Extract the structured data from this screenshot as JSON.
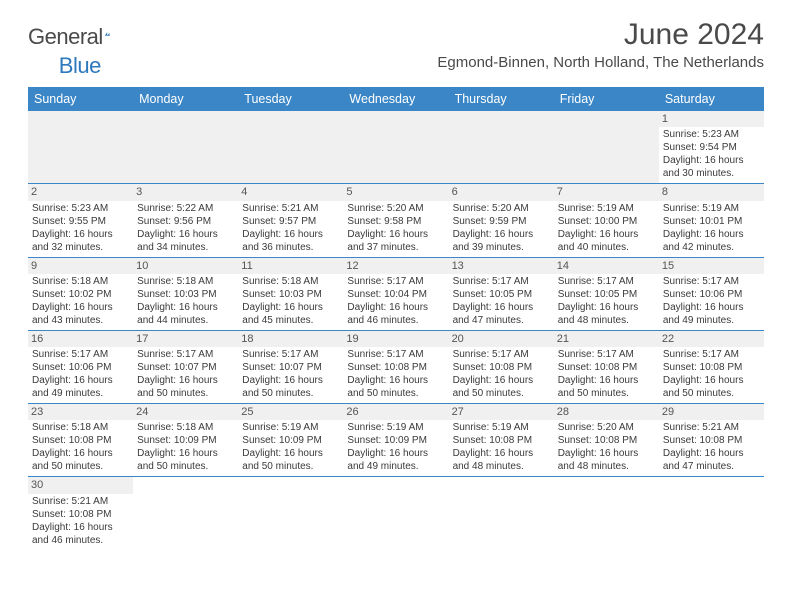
{
  "logo": {
    "text1": "General",
    "text2": "Blue"
  },
  "title": "June 2024",
  "location": "Egmond-Binnen, North Holland, The Netherlands",
  "colors": {
    "header_bg": "#3b86c6",
    "header_text": "#ffffff",
    "daynum_bg": "#f0f0f0",
    "text": "#3a3a3a",
    "divider": "#3b86c6",
    "logo_gray": "#4a4a4a",
    "logo_blue": "#2d79bd"
  },
  "weekdays": [
    "Sunday",
    "Monday",
    "Tuesday",
    "Wednesday",
    "Thursday",
    "Friday",
    "Saturday"
  ],
  "days": {
    "1": {
      "sr": "5:23 AM",
      "ss": "9:54 PM",
      "dl": "16 hours and 30 minutes."
    },
    "2": {
      "sr": "5:23 AM",
      "ss": "9:55 PM",
      "dl": "16 hours and 32 minutes."
    },
    "3": {
      "sr": "5:22 AM",
      "ss": "9:56 PM",
      "dl": "16 hours and 34 minutes."
    },
    "4": {
      "sr": "5:21 AM",
      "ss": "9:57 PM",
      "dl": "16 hours and 36 minutes."
    },
    "5": {
      "sr": "5:20 AM",
      "ss": "9:58 PM",
      "dl": "16 hours and 37 minutes."
    },
    "6": {
      "sr": "5:20 AM",
      "ss": "9:59 PM",
      "dl": "16 hours and 39 minutes."
    },
    "7": {
      "sr": "5:19 AM",
      "ss": "10:00 PM",
      "dl": "16 hours and 40 minutes."
    },
    "8": {
      "sr": "5:19 AM",
      "ss": "10:01 PM",
      "dl": "16 hours and 42 minutes."
    },
    "9": {
      "sr": "5:18 AM",
      "ss": "10:02 PM",
      "dl": "16 hours and 43 minutes."
    },
    "10": {
      "sr": "5:18 AM",
      "ss": "10:03 PM",
      "dl": "16 hours and 44 minutes."
    },
    "11": {
      "sr": "5:18 AM",
      "ss": "10:03 PM",
      "dl": "16 hours and 45 minutes."
    },
    "12": {
      "sr": "5:17 AM",
      "ss": "10:04 PM",
      "dl": "16 hours and 46 minutes."
    },
    "13": {
      "sr": "5:17 AM",
      "ss": "10:05 PM",
      "dl": "16 hours and 47 minutes."
    },
    "14": {
      "sr": "5:17 AM",
      "ss": "10:05 PM",
      "dl": "16 hours and 48 minutes."
    },
    "15": {
      "sr": "5:17 AM",
      "ss": "10:06 PM",
      "dl": "16 hours and 49 minutes."
    },
    "16": {
      "sr": "5:17 AM",
      "ss": "10:06 PM",
      "dl": "16 hours and 49 minutes."
    },
    "17": {
      "sr": "5:17 AM",
      "ss": "10:07 PM",
      "dl": "16 hours and 50 minutes."
    },
    "18": {
      "sr": "5:17 AM",
      "ss": "10:07 PM",
      "dl": "16 hours and 50 minutes."
    },
    "19": {
      "sr": "5:17 AM",
      "ss": "10:08 PM",
      "dl": "16 hours and 50 minutes."
    },
    "20": {
      "sr": "5:17 AM",
      "ss": "10:08 PM",
      "dl": "16 hours and 50 minutes."
    },
    "21": {
      "sr": "5:17 AM",
      "ss": "10:08 PM",
      "dl": "16 hours and 50 minutes."
    },
    "22": {
      "sr": "5:17 AM",
      "ss": "10:08 PM",
      "dl": "16 hours and 50 minutes."
    },
    "23": {
      "sr": "5:18 AM",
      "ss": "10:08 PM",
      "dl": "16 hours and 50 minutes."
    },
    "24": {
      "sr": "5:18 AM",
      "ss": "10:09 PM",
      "dl": "16 hours and 50 minutes."
    },
    "25": {
      "sr": "5:19 AM",
      "ss": "10:09 PM",
      "dl": "16 hours and 50 minutes."
    },
    "26": {
      "sr": "5:19 AM",
      "ss": "10:09 PM",
      "dl": "16 hours and 49 minutes."
    },
    "27": {
      "sr": "5:19 AM",
      "ss": "10:08 PM",
      "dl": "16 hours and 48 minutes."
    },
    "28": {
      "sr": "5:20 AM",
      "ss": "10:08 PM",
      "dl": "16 hours and 48 minutes."
    },
    "29": {
      "sr": "5:21 AM",
      "ss": "10:08 PM",
      "dl": "16 hours and 47 minutes."
    },
    "30": {
      "sr": "5:21 AM",
      "ss": "10:08 PM",
      "dl": "16 hours and 46 minutes."
    }
  },
  "labels": {
    "sunrise": "Sunrise: ",
    "sunset": "Sunset: ",
    "daylight": "Daylight: "
  },
  "layout": [
    [
      null,
      null,
      null,
      null,
      null,
      null,
      "1"
    ],
    [
      "2",
      "3",
      "4",
      "5",
      "6",
      "7",
      "8"
    ],
    [
      "9",
      "10",
      "11",
      "12",
      "13",
      "14",
      "15"
    ],
    [
      "16",
      "17",
      "18",
      "19",
      "20",
      "21",
      "22"
    ],
    [
      "23",
      "24",
      "25",
      "26",
      "27",
      "28",
      "29"
    ],
    [
      "30",
      null,
      null,
      null,
      null,
      null,
      null
    ]
  ]
}
